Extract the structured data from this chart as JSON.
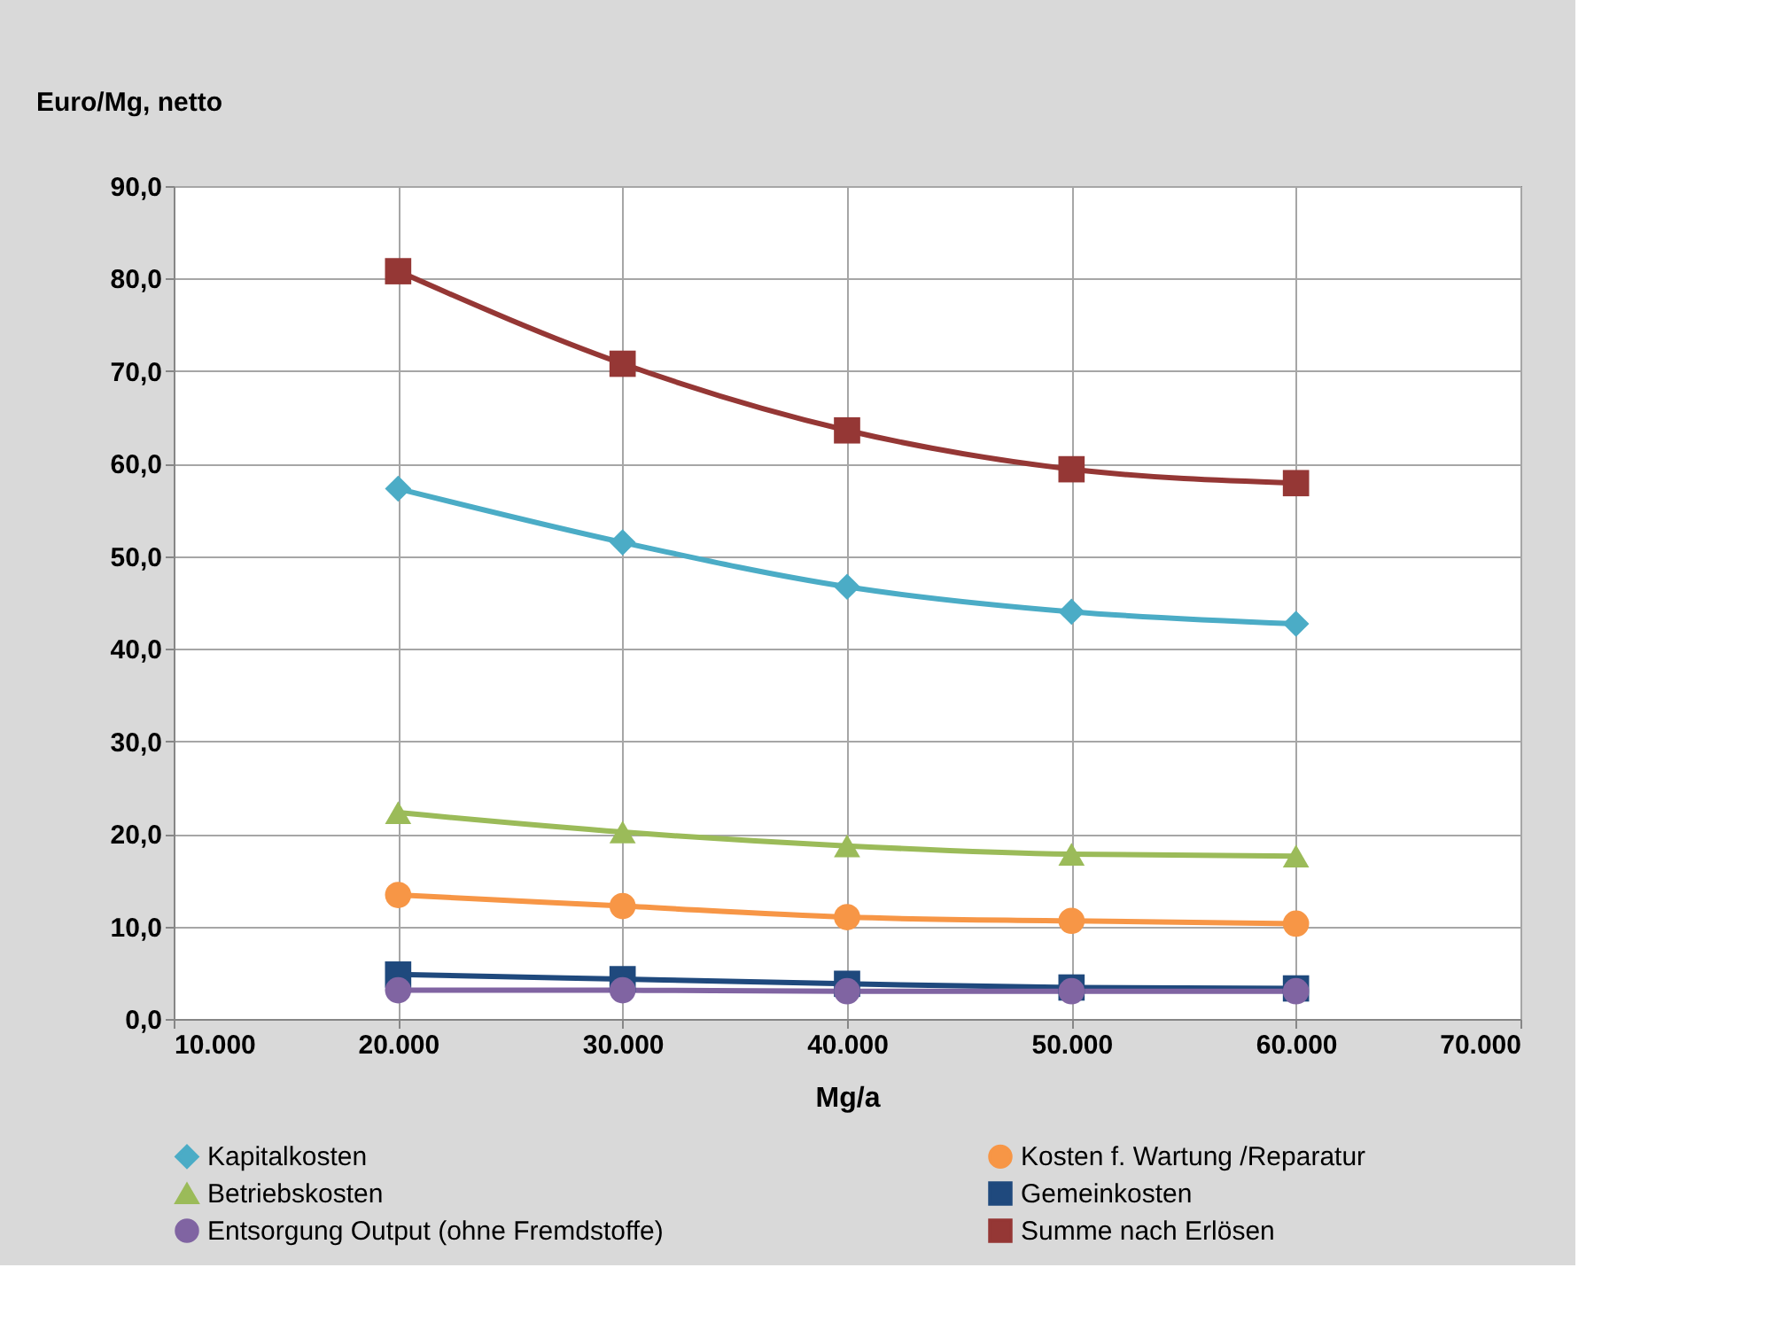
{
  "chart_data": {
    "type": "line",
    "ylabel": "Euro/Mg, netto",
    "xlabel": "Mg/a",
    "x": [
      20000,
      30000,
      40000,
      50000,
      60000
    ],
    "xlim": [
      10000,
      70000
    ],
    "xticks": [
      {
        "value": 10000,
        "label": "10.000"
      },
      {
        "value": 20000,
        "label": "20.000"
      },
      {
        "value": 30000,
        "label": "30.000"
      },
      {
        "value": 40000,
        "label": "40.000"
      },
      {
        "value": 50000,
        "label": "50.000"
      },
      {
        "value": 60000,
        "label": "60.000"
      },
      {
        "value": 70000,
        "label": "70.000"
      }
    ],
    "ylim": [
      0,
      90
    ],
    "yticks": [
      {
        "value": 0,
        "label": "0,0"
      },
      {
        "value": 10,
        "label": "10,0"
      },
      {
        "value": 20,
        "label": "20,0"
      },
      {
        "value": 30,
        "label": "30,0"
      },
      {
        "value": 40,
        "label": "40,0"
      },
      {
        "value": 50,
        "label": "50,0"
      },
      {
        "value": 60,
        "label": "60,0"
      },
      {
        "value": 70,
        "label": "70,0"
      },
      {
        "value": 80,
        "label": "80,0"
      },
      {
        "value": 90,
        "label": "90,0"
      }
    ],
    "grid": true,
    "legend": "bottom",
    "series": [
      {
        "name": "Kapitalkosten",
        "color": "#4bacc6",
        "marker": "diamond",
        "values": [
          57.3,
          51.5,
          46.7,
          44.0,
          42.7
        ]
      },
      {
        "name": "Kosten f. Wartung /Reparatur",
        "color": "#f79646",
        "marker": "circle",
        "values": [
          13.4,
          12.2,
          11.0,
          10.6,
          10.3
        ]
      },
      {
        "name": "Betriebskosten",
        "color": "#9bbb59",
        "marker": "triangle",
        "values": [
          22.3,
          20.2,
          18.7,
          17.8,
          17.6
        ]
      },
      {
        "name": "Gemeinkosten",
        "color": "#1f497d",
        "marker": "square",
        "values": [
          4.8,
          4.3,
          3.8,
          3.4,
          3.3
        ]
      },
      {
        "name": "Entsorgung Output (ohne Fremdstoffe)",
        "color": "#8064a2",
        "marker": "circle",
        "values": [
          3.1,
          3.1,
          3.0,
          3.0,
          3.0
        ]
      },
      {
        "name": "Summe nach Erlösen",
        "color": "#953735",
        "marker": "square",
        "values": [
          80.8,
          70.8,
          63.6,
          59.4,
          57.9
        ]
      }
    ]
  }
}
